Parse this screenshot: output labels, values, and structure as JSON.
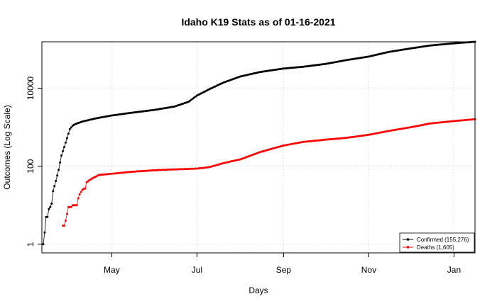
{
  "chart_data": {
    "type": "scatter",
    "title": "Idaho K19 Stats as of 01-16-2021",
    "xlabel": "Days",
    "ylabel": "Outcomes (Log Scale)",
    "y_scale": "log10",
    "xlim": [
      "2020-03-12",
      "2021-01-16"
    ],
    "ylim": [
      0.6,
      155276
    ],
    "grid": true,
    "legend_position": "bottom-right",
    "x_ticks": [
      {
        "date": "2020-05-01",
        "label": "May"
      },
      {
        "date": "2020-07-01",
        "label": "Jul"
      },
      {
        "date": "2020-09-01",
        "label": "Sep"
      },
      {
        "date": "2020-11-01",
        "label": "Nov"
      },
      {
        "date": "2021-01-01",
        "label": "Jan"
      }
    ],
    "y_ticks": [
      {
        "value": 1,
        "label": "1"
      },
      {
        "value": 100,
        "label": "100"
      },
      {
        "value": 10000,
        "label": "10000"
      }
    ],
    "series": [
      {
        "name": "Confirmed (155,276)",
        "color": "#000000",
        "start_date": "2020-03-13",
        "end_date": "2021-01-16",
        "anchors": [
          [
            "2020-03-13",
            1
          ],
          [
            "2020-03-14",
            2
          ],
          [
            "2020-03-15",
            5
          ],
          [
            "2020-03-16",
            5
          ],
          [
            "2020-03-17",
            8
          ],
          [
            "2020-03-18",
            9
          ],
          [
            "2020-03-19",
            11
          ],
          [
            "2020-03-20",
            23
          ],
          [
            "2020-03-22",
            42
          ],
          [
            "2020-03-24",
            81
          ],
          [
            "2020-03-26",
            189
          ],
          [
            "2020-03-28",
            310
          ],
          [
            "2020-03-30",
            525
          ],
          [
            "2020-04-01",
            891
          ],
          [
            "2020-04-03",
            1101
          ],
          [
            "2020-04-05",
            1210
          ],
          [
            "2020-04-10",
            1400
          ],
          [
            "2020-04-20",
            1700
          ],
          [
            "2020-05-01",
            2000
          ],
          [
            "2020-05-15",
            2350
          ],
          [
            "2020-06-01",
            2800
          ],
          [
            "2020-06-15",
            3400
          ],
          [
            "2020-06-25",
            4500
          ],
          [
            "2020-07-01",
            6500
          ],
          [
            "2020-07-10",
            9500
          ],
          [
            "2020-07-20",
            14000
          ],
          [
            "2020-08-01",
            20000
          ],
          [
            "2020-08-15",
            26000
          ],
          [
            "2020-09-01",
            32000
          ],
          [
            "2020-09-15",
            35500
          ],
          [
            "2020-10-01",
            42000
          ],
          [
            "2020-10-15",
            52000
          ],
          [
            "2020-11-01",
            65000
          ],
          [
            "2020-11-15",
            85000
          ],
          [
            "2020-12-01",
            105000
          ],
          [
            "2020-12-15",
            125000
          ],
          [
            "2021-01-01",
            142000
          ],
          [
            "2021-01-16",
            155276
          ]
        ]
      },
      {
        "name": "Deaths (1,605)",
        "color": "#ff0000",
        "start_date": "2020-03-27",
        "end_date": "2021-01-16",
        "anchors": [
          [
            "2020-03-27",
            3
          ],
          [
            "2020-03-28",
            3
          ],
          [
            "2020-03-29",
            4
          ],
          [
            "2020-03-30",
            6
          ],
          [
            "2020-03-31",
            9
          ],
          [
            "2020-04-01",
            9
          ],
          [
            "2020-04-03",
            10
          ],
          [
            "2020-04-05",
            10
          ],
          [
            "2020-04-06",
            10
          ],
          [
            "2020-04-07",
            15
          ],
          [
            "2020-04-08",
            19
          ],
          [
            "2020-04-10",
            25
          ],
          [
            "2020-04-12",
            27
          ],
          [
            "2020-04-13",
            39
          ],
          [
            "2020-04-15",
            44
          ],
          [
            "2020-04-18",
            51
          ],
          [
            "2020-04-22",
            60
          ],
          [
            "2020-05-01",
            64
          ],
          [
            "2020-05-15",
            72
          ],
          [
            "2020-06-01",
            79
          ],
          [
            "2020-06-15",
            83
          ],
          [
            "2020-07-01",
            87
          ],
          [
            "2020-07-10",
            95
          ],
          [
            "2020-07-20",
            120
          ],
          [
            "2020-08-01",
            150
          ],
          [
            "2020-08-15",
            230
          ],
          [
            "2020-09-01",
            340
          ],
          [
            "2020-09-15",
            420
          ],
          [
            "2020-10-01",
            480
          ],
          [
            "2020-10-15",
            530
          ],
          [
            "2020-11-01",
            640
          ],
          [
            "2020-11-15",
            800
          ],
          [
            "2020-12-01",
            1000
          ],
          [
            "2020-12-15",
            1250
          ],
          [
            "2021-01-01",
            1440
          ],
          [
            "2021-01-16",
            1605
          ]
        ]
      }
    ]
  }
}
